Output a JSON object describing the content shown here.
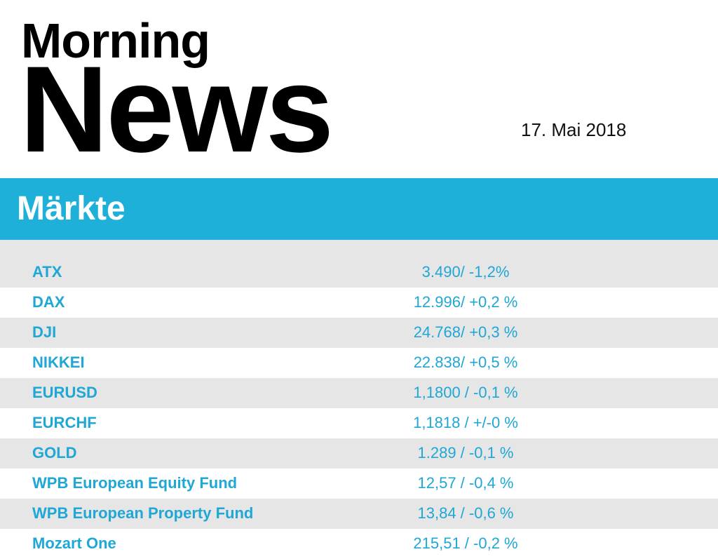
{
  "header": {
    "title_line1": "Morning",
    "title_line2": "News",
    "date": "17. Mai 2018"
  },
  "section": {
    "title": "Märkte"
  },
  "markets": [
    {
      "name": "ATX",
      "value": "3.490/ -1,2%"
    },
    {
      "name": "DAX",
      "value": "12.996/ +0,2 %"
    },
    {
      "name": "DJI",
      "value": "24.768/ +0,3 %"
    },
    {
      "name": "NIKKEI",
      "value": "22.838/ +0,5 %"
    },
    {
      "name": "EURUSD",
      "value": "1,1800 / -0,1 %"
    },
    {
      "name": "EURCHF",
      "value": "1,1818 / +/-0 %"
    },
    {
      "name": "GOLD",
      "value": "1.289 / -0,1 %"
    },
    {
      "name": "WPB European Equity Fund",
      "value": "12,57 / -0,4 %"
    },
    {
      "name": "WPB European Property Fund",
      "value": "13,84 / -0,6 %"
    },
    {
      "name": "Mozart One",
      "value": "215,51 / -0,2 %"
    }
  ],
  "colors": {
    "accent": "#1fb0da",
    "row_text": "#1fa7d6",
    "row_shade": "#e6e6e6"
  }
}
